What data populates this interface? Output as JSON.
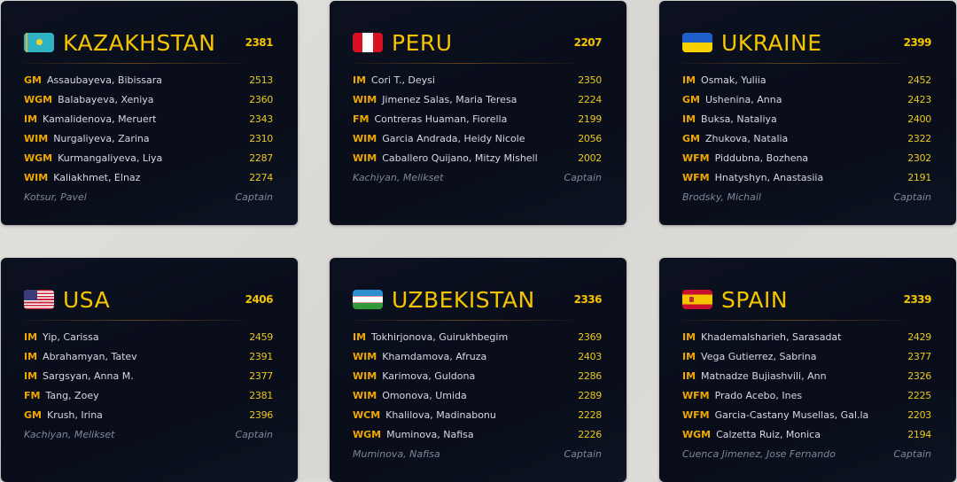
{
  "teams": [
    {
      "country": "KAZAKHSTAN",
      "flag": "kazakhstan-flag",
      "avg": "2381",
      "players": [
        {
          "title": "GM",
          "name": "Assaubayeva, Bibissara",
          "rating": "2513"
        },
        {
          "title": "WGM",
          "name": "Balabayeva, Xeniya",
          "rating": "2360"
        },
        {
          "title": "IM",
          "name": "Kamalidenova, Meruert",
          "rating": "2343"
        },
        {
          "title": "WIM",
          "name": "Nurgaliyeva, Zarina",
          "rating": "2310"
        },
        {
          "title": "WGM",
          "name": "Kurmangaliyeva, Liya",
          "rating": "2287"
        },
        {
          "title": "WIM",
          "name": "Kaliakhmet, Elnaz",
          "rating": "2274"
        }
      ],
      "captain": "Kotsur, Pavel",
      "captain_label": "Captain"
    },
    {
      "country": "PERU",
      "flag": "peru-flag",
      "avg": "2207",
      "players": [
        {
          "title": "IM",
          "name": "Cori T., Deysi",
          "rating": "2350"
        },
        {
          "title": "WIM",
          "name": "Jimenez Salas, Maria Teresa",
          "rating": "2224"
        },
        {
          "title": "FM",
          "name": "Contreras Huaman, Fiorella",
          "rating": "2199"
        },
        {
          "title": "WIM",
          "name": "Garcia Andrada, Heidy Nicole",
          "rating": "2056"
        },
        {
          "title": "WIM",
          "name": "Caballero Quijano, Mitzy Mishell",
          "rating": "2002"
        }
      ],
      "captain": "Kachiyan, Melikset",
      "captain_label": "Captain"
    },
    {
      "country": "UKRAINE",
      "flag": "ukraine-flag",
      "avg": "2399",
      "players": [
        {
          "title": "IM",
          "name": "Osmak, Yuliia",
          "rating": "2452"
        },
        {
          "title": "GM",
          "name": "Ushenina, Anna",
          "rating": "2423"
        },
        {
          "title": "IM",
          "name": "Buksa, Nataliya",
          "rating": "2400"
        },
        {
          "title": "GM",
          "name": "Zhukova, Natalia",
          "rating": "2322"
        },
        {
          "title": "WFM",
          "name": "Piddubna, Bozhena",
          "rating": "2302"
        },
        {
          "title": "WFM",
          "name": "Hnatyshyn, Anastasiia",
          "rating": "2191"
        }
      ],
      "captain": "Brodsky, Michail",
      "captain_label": "Captain"
    },
    {
      "country": "USA",
      "flag": "usa-flag",
      "avg": "2406",
      "players": [
        {
          "title": "IM",
          "name": "Yip, Carissa",
          "rating": "2459"
        },
        {
          "title": "IM",
          "name": "Abrahamyan, Tatev",
          "rating": "2391"
        },
        {
          "title": "IM",
          "name": "Sargsyan, Anna M.",
          "rating": "2377"
        },
        {
          "title": "FM",
          "name": "Tang, Zoey",
          "rating": "2381"
        },
        {
          "title": "GM",
          "name": "Krush, Irina",
          "rating": "2396"
        }
      ],
      "captain": "Kachiyan, Melikset",
      "captain_label": "Captain"
    },
    {
      "country": "UZBEKISTAN",
      "flag": "uzbekistan-flag",
      "avg": "2336",
      "players": [
        {
          "title": "IM",
          "name": "Tokhirjonova, Guirukhbegim",
          "rating": "2369"
        },
        {
          "title": "WIM",
          "name": "Khamdamova, Afruza",
          "rating": "2403"
        },
        {
          "title": "WIM",
          "name": "Karimova, Guldona",
          "rating": "2286"
        },
        {
          "title": "WIM",
          "name": "Omonova, Umida",
          "rating": "2289"
        },
        {
          "title": "WCM",
          "name": "Khalilova, Madinabonu",
          "rating": "2228"
        },
        {
          "title": "WGM",
          "name": "Muminova, Nafisa",
          "rating": "2226"
        }
      ],
      "captain": "Muminova, Nafisa",
      "captain_label": "Captain"
    },
    {
      "country": "SPAIN",
      "flag": "spain-flag",
      "avg": "2339",
      "players": [
        {
          "title": "IM",
          "name": "Khademalsharieh, Sarasadat",
          "rating": "2429"
        },
        {
          "title": "IM",
          "name": "Vega Gutierrez, Sabrina",
          "rating": "2377"
        },
        {
          "title": "IM",
          "name": "Matnadze Bujiashvili, Ann",
          "rating": "2326"
        },
        {
          "title": "WFM",
          "name": "Prado Acebo, Ines",
          "rating": "2225"
        },
        {
          "title": "WFM",
          "name": "Garcia-Castany Musellas, Gal.la",
          "rating": "2203"
        },
        {
          "title": "WGM",
          "name": "Calzetta Ruiz, Monica",
          "rating": "2194"
        }
      ],
      "captain": "Cuenca Jimenez, Jose Fernando",
      "captain_label": "Captain"
    }
  ]
}
